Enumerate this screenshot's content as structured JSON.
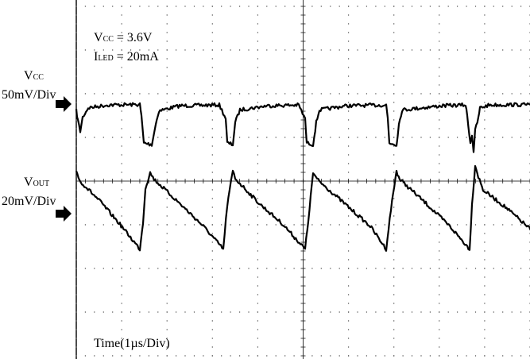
{
  "annotations": {
    "vcc_value": {
      "main": "V",
      "sub": "CC",
      "rest": " = 3.6V"
    },
    "iled_value": {
      "main": "I",
      "sub": "LED",
      "rest": " = 20mA"
    },
    "time_scale": "Time(1µs/Div)"
  },
  "channels": [
    {
      "name_main": "V",
      "name_sub": "CC",
      "scale": "50mV/Div"
    },
    {
      "name_main": "V",
      "name_sub": "OUT",
      "scale": "20mV/Div"
    }
  ],
  "chart_data": {
    "type": "line",
    "x_divisions": 10,
    "y_divisions": 8,
    "x_unit": "µs",
    "x_per_div": 1,
    "grid": true,
    "series": [
      {
        "name": "VCC",
        "scale_per_div": "50mV",
        "points": [
          [
            0.0,
            -0.22
          ],
          [
            0.02,
            -0.45
          ],
          [
            0.05,
            -0.72
          ],
          [
            0.08,
            -0.38
          ],
          [
            0.15,
            -0.15
          ],
          [
            0.4,
            -0.08
          ],
          [
            0.8,
            -0.07
          ],
          [
            0.82,
            -0.35
          ],
          [
            0.85,
            -1.0
          ],
          [
            0.95,
            -1.04
          ],
          [
            1.0,
            -0.55
          ],
          [
            1.04,
            -0.22
          ],
          [
            1.3,
            -0.1
          ],
          [
            1.8,
            -0.08
          ],
          [
            1.88,
            -0.4
          ],
          [
            1.9,
            -1.0
          ],
          [
            1.97,
            -1.04
          ],
          [
            2.0,
            -0.5
          ],
          [
            2.06,
            -0.2
          ],
          [
            2.4,
            -0.1
          ],
          [
            2.8,
            -0.08
          ],
          [
            2.88,
            -0.42
          ],
          [
            2.9,
            -1.0
          ],
          [
            2.98,
            -1.04
          ],
          [
            3.02,
            -0.5
          ],
          [
            3.06,
            -0.2
          ],
          [
            3.4,
            -0.1
          ],
          [
            3.9,
            -0.08
          ],
          [
            3.92,
            -0.4
          ],
          [
            3.94,
            -1.0
          ],
          [
            4.03,
            -1.04
          ],
          [
            4.06,
            -0.55
          ],
          [
            4.1,
            -0.2
          ],
          [
            4.6,
            -0.1
          ],
          [
            4.9,
            -0.08
          ],
          [
            4.92,
            -0.35
          ],
          [
            4.96,
            -1.0
          ],
          [
            4.98,
            -0.8
          ],
          [
            5.0,
            -1.2
          ],
          [
            5.02,
            -0.7
          ],
          [
            5.06,
            -0.4
          ],
          [
            5.08,
            -0.15
          ],
          [
            5.2,
            -0.08
          ],
          [
            5.8,
            -0.07
          ],
          [
            5.82,
            -0.06
          ]
        ]
      },
      {
        "name": "VOUT",
        "scale_per_div": "20mV",
        "points": [
          [
            0.0,
            0.12
          ],
          [
            0.04,
            -0.15
          ],
          [
            0.3,
            -0.7
          ],
          [
            0.55,
            -1.3
          ],
          [
            0.8,
            -1.95
          ],
          [
            0.84,
            -1.25
          ],
          [
            0.87,
            -0.35
          ],
          [
            0.93,
            0.05
          ],
          [
            0.98,
            -0.12
          ],
          [
            1.3,
            -0.75
          ],
          [
            1.6,
            -1.35
          ],
          [
            1.85,
            -1.95
          ],
          [
            1.9,
            -0.8
          ],
          [
            1.97,
            0.1
          ],
          [
            2.0,
            -0.1
          ],
          [
            2.3,
            -0.75
          ],
          [
            2.6,
            -1.3
          ],
          [
            2.88,
            -1.95
          ],
          [
            2.92,
            -1.2
          ],
          [
            2.98,
            0.05
          ],
          [
            3.03,
            -0.12
          ],
          [
            3.4,
            -0.8
          ],
          [
            3.7,
            -1.35
          ],
          [
            3.9,
            -1.95
          ],
          [
            3.96,
            -0.9
          ],
          [
            4.03,
            0.1
          ],
          [
            4.07,
            -0.12
          ],
          [
            4.4,
            -0.75
          ],
          [
            4.7,
            -1.35
          ],
          [
            4.95,
            -1.95
          ],
          [
            4.98,
            -0.8
          ],
          [
            5.02,
            0.25
          ],
          [
            5.06,
            -0.05
          ],
          [
            5.12,
            -0.4
          ],
          [
            5.4,
            -0.85
          ],
          [
            5.7,
            -1.4
          ],
          [
            5.82,
            -1.8
          ]
        ]
      }
    ]
  }
}
